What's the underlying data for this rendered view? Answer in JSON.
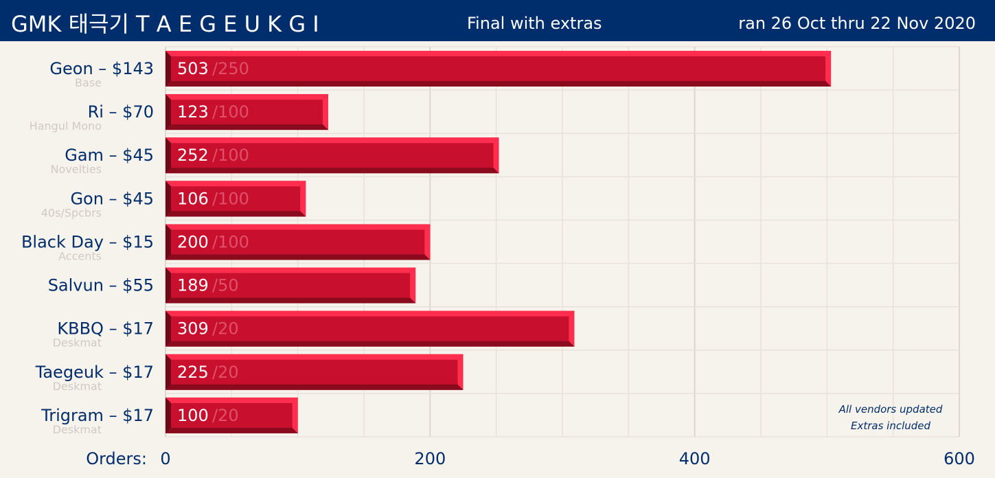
{
  "header": {
    "title": "GMK 태극기 T A E G E U K G I",
    "subtitle": "Final with extras",
    "dates": "ran 26 Oct thru 22 Nov 2020"
  },
  "chart_data": {
    "type": "bar",
    "orientation": "horizontal",
    "categories": [
      "Geon – $143",
      "Ri – $70",
      "Gam – $45",
      "Gon – $45",
      "Black Day – $15",
      "Salvun – $55",
      "KBBQ – $17",
      "Taegeuk – $17",
      "Trigram – $17"
    ],
    "category_subtitles": [
      "Base",
      "Hangul Mono",
      "Novelties",
      "40s/Spcbrs",
      "Accents",
      "",
      "Deskmat",
      "Deskmat",
      "Deskmat"
    ],
    "values": [
      503,
      123,
      252,
      106,
      200,
      189,
      309,
      225,
      100
    ],
    "targets": [
      250,
      100,
      100,
      100,
      100,
      50,
      20,
      20,
      20
    ],
    "xlabel": "Orders:",
    "xlim": [
      0,
      600
    ],
    "xticks": [
      0,
      200,
      400,
      600
    ],
    "grid": true,
    "annotation": [
      "All vendors updated",
      "Extras included"
    ],
    "colors": {
      "bar": "#c8102e",
      "bar_light": "#ff2d4e",
      "bar_dark": "#6e0a18",
      "bar_bottom": "#8a0a1e",
      "text": "#002d6b",
      "header": "#002d6b",
      "background": "#f6f2ec"
    }
  }
}
